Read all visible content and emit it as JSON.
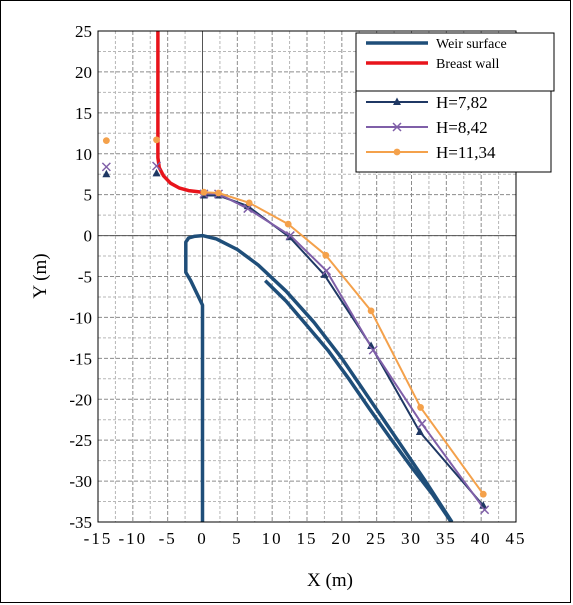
{
  "chart_data": {
    "type": "line",
    "xlabel": "X (m)",
    "ylabel": "Y (m)",
    "xlim": [
      -15,
      45
    ],
    "ylim": [
      -35,
      25
    ],
    "xticks": [
      -15,
      -10,
      -5,
      0,
      5,
      10,
      15,
      20,
      25,
      30,
      35,
      40,
      45
    ],
    "yticks": [
      -35,
      -30,
      -25,
      -20,
      -15,
      -10,
      -5,
      0,
      5,
      10,
      15,
      20,
      25
    ],
    "grid": true,
    "legend_position": "top-right",
    "series": [
      {
        "name": "Weir surface",
        "color": "#1f4e79",
        "marker": "none",
        "segments": [
          [
            [
              0,
              -35
            ],
            [
              0,
              -8.5
            ],
            [
              -1.7,
              -5.5
            ],
            [
              -2.4,
              -4.5
            ],
            [
              -2.4,
              -0.8
            ],
            [
              -2,
              -0.3
            ],
            [
              -1.2,
              -0.1
            ],
            [
              0,
              0
            ],
            [
              2,
              -0.4
            ],
            [
              5,
              -1.7
            ],
            [
              8,
              -3.6
            ],
            [
              12,
              -6.8
            ],
            [
              16,
              -10.6
            ],
            [
              20,
              -15
            ],
            [
              24,
              -20
            ],
            [
              28,
              -25
            ],
            [
              32,
              -30
            ],
            [
              35.8,
              -35
            ]
          ],
          [
            [
              9,
              -5.5
            ],
            [
              12,
              -8
            ],
            [
              15,
              -11
            ],
            [
              18,
              -14
            ],
            [
              21,
              -17.5
            ],
            [
              24,
              -21.2
            ],
            [
              27,
              -24.8
            ],
            [
              30,
              -28.3
            ],
            [
              33,
              -31.6
            ],
            [
              35.7,
              -35
            ]
          ]
        ]
      },
      {
        "name": "Breast wall",
        "color": "#e8141b",
        "marker": "none",
        "segments": [
          [
            [
              -6.4,
              25
            ],
            [
              -6.4,
              9.5
            ],
            [
              -6.2,
              8.3
            ],
            [
              -5.6,
              7.3
            ],
            [
              -4.6,
              6.4
            ],
            [
              -3.3,
              5.8
            ],
            [
              -2,
              5.5
            ],
            [
              0,
              5.3
            ]
          ]
        ]
      },
      {
        "name": "H=7,82",
        "color": "#1f3864",
        "marker": "triangle",
        "points": [
          [
            -13.8,
            7.5
          ],
          [
            -6.6,
            7.6
          ],
          [
            0.2,
            4.9
          ],
          [
            2.3,
            4.9
          ],
          [
            6.5,
            3.6
          ],
          [
            12.5,
            -0.2
          ],
          [
            17.5,
            -4.8
          ],
          [
            24.2,
            -13.5
          ],
          [
            31.2,
            -24
          ],
          [
            40.3,
            -33
          ]
        ]
      },
      {
        "name": "H=8,42",
        "color": "#7f5fa8",
        "marker": "x",
        "points": [
          [
            -13.8,
            8.4
          ],
          [
            -6.6,
            8.5
          ],
          [
            0.2,
            5.1
          ],
          [
            2.3,
            5.1
          ],
          [
            6.5,
            3.3
          ],
          [
            12.6,
            0
          ],
          [
            17.8,
            -4.3
          ],
          [
            24.5,
            -14
          ],
          [
            31.5,
            -23
          ],
          [
            40.5,
            -33.5
          ]
        ]
      },
      {
        "name": "H=11,34",
        "color": "#f4a14b",
        "marker": "circle",
        "points": [
          [
            -13.8,
            11.6
          ],
          [
            -6.6,
            11.7
          ],
          [
            0.2,
            5.3
          ],
          [
            2.3,
            5.2
          ],
          [
            6.7,
            4
          ],
          [
            12.3,
            1.4
          ],
          [
            17.7,
            -2.4
          ],
          [
            24.2,
            -9.2
          ],
          [
            31.3,
            -21
          ],
          [
            40.3,
            -31.6
          ]
        ]
      }
    ]
  }
}
